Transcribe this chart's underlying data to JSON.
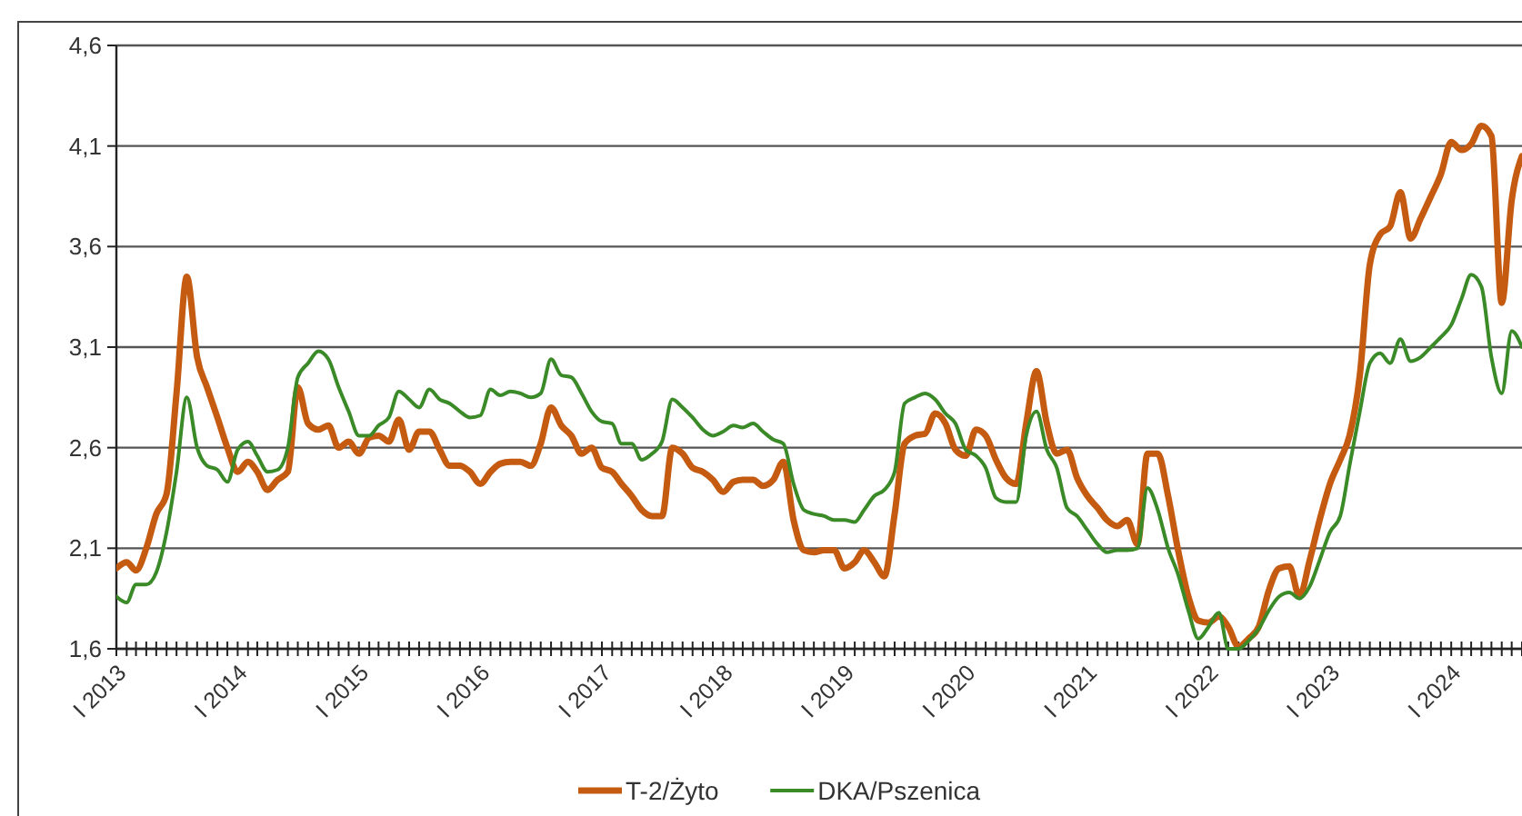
{
  "chart_data": {
    "type": "line",
    "x": [
      "2013-01",
      "2013-02",
      "2013-03",
      "2013-04",
      "2013-05",
      "2013-06",
      "2013-07",
      "2013-08",
      "2013-09",
      "2013-10",
      "2013-11",
      "2013-12",
      "2014-01",
      "2014-02",
      "2014-03",
      "2014-04",
      "2014-05",
      "2014-06",
      "2014-07",
      "2014-08",
      "2014-09",
      "2014-10",
      "2014-11",
      "2014-12",
      "2015-01",
      "2015-02",
      "2015-03",
      "2015-04",
      "2015-05",
      "2015-06",
      "2015-07",
      "2015-08",
      "2015-09",
      "2015-10",
      "2015-11",
      "2015-12",
      "2016-01",
      "2016-02",
      "2016-03",
      "2016-04",
      "2016-05",
      "2016-06",
      "2016-07",
      "2016-08",
      "2016-09",
      "2016-10",
      "2016-11",
      "2016-12",
      "2017-01",
      "2017-02",
      "2017-03",
      "2017-04",
      "2017-05",
      "2017-06",
      "2017-07",
      "2017-08",
      "2017-09",
      "2017-10",
      "2017-11",
      "2017-12",
      "2018-01",
      "2018-02",
      "2018-03",
      "2018-04",
      "2018-05",
      "2018-06",
      "2018-07",
      "2018-08",
      "2018-09",
      "2018-10",
      "2018-11",
      "2018-12",
      "2019-01",
      "2019-02",
      "2019-03",
      "2019-04",
      "2019-05",
      "2019-06",
      "2019-07",
      "2019-08",
      "2019-09",
      "2019-10",
      "2019-11",
      "2019-12",
      "2020-01",
      "2020-02",
      "2020-03",
      "2020-04",
      "2020-05",
      "2020-06",
      "2020-07",
      "2020-08",
      "2020-09",
      "2020-10",
      "2020-11",
      "2020-12",
      "2021-01",
      "2021-02",
      "2021-03",
      "2021-04",
      "2021-05",
      "2021-06",
      "2021-07",
      "2021-08",
      "2021-09",
      "2021-10",
      "2021-11",
      "2021-12",
      "2022-01",
      "2022-02",
      "2022-03",
      "2022-04",
      "2022-05",
      "2022-06",
      "2022-07",
      "2022-08",
      "2022-09",
      "2022-10",
      "2022-11",
      "2022-12",
      "2023-01",
      "2023-02",
      "2023-03",
      "2023-04",
      "2023-05",
      "2023-06",
      "2023-07",
      "2023-08",
      "2023-09",
      "2023-10",
      "2023-11",
      "2023-12",
      "2024-01",
      "2024-02",
      "2024-03",
      "2024-04",
      "2024-05",
      "2024-06",
      "2024-07",
      "2024-08"
    ],
    "series": [
      {
        "name": "T-2/Żyto",
        "color": "#c55a11",
        "values": [
          2.0,
          2.03,
          1.99,
          2.1,
          2.27,
          2.37,
          2.87,
          3.45,
          3.05,
          2.9,
          2.75,
          2.6,
          2.48,
          2.53,
          2.48,
          2.39,
          2.44,
          2.48,
          2.9,
          2.72,
          2.69,
          2.71,
          2.6,
          2.63,
          2.57,
          2.65,
          2.66,
          2.63,
          2.74,
          2.59,
          2.68,
          2.68,
          2.59,
          2.51,
          2.51,
          2.48,
          2.42,
          2.48,
          2.52,
          2.53,
          2.53,
          2.51,
          2.62,
          2.8,
          2.71,
          2.66,
          2.57,
          2.6,
          2.5,
          2.48,
          2.42,
          2.36,
          2.29,
          2.26,
          2.26,
          2.6,
          2.57,
          2.5,
          2.48,
          2.44,
          2.38,
          2.43,
          2.44,
          2.44,
          2.41,
          2.44,
          2.53,
          2.24,
          2.09,
          2.08,
          2.09,
          2.09,
          2.0,
          2.03,
          2.09,
          2.03,
          1.96,
          2.27,
          2.62,
          2.66,
          2.67,
          2.77,
          2.72,
          2.59,
          2.56,
          2.69,
          2.66,
          2.54,
          2.45,
          2.42,
          2.72,
          2.98,
          2.72,
          2.57,
          2.59,
          2.45,
          2.36,
          2.3,
          2.24,
          2.21,
          2.24,
          2.12,
          2.57,
          2.57,
          2.36,
          2.09,
          1.86,
          1.74,
          1.73,
          1.76,
          1.71,
          1.61,
          1.65,
          1.71,
          1.89,
          2.0,
          2.01,
          1.86,
          2.04,
          2.24,
          2.42,
          2.54,
          2.66,
          2.96,
          3.51,
          3.66,
          3.7,
          3.87,
          3.64,
          3.74,
          3.85,
          3.96,
          4.12,
          4.08,
          4.11,
          4.2,
          4.15,
          3.32,
          3.83,
          4.05
        ]
      },
      {
        "name": "DKA/Pszenica",
        "color": "#3a8a28",
        "values": [
          1.86,
          1.83,
          1.92,
          1.92,
          1.98,
          2.18,
          2.48,
          2.85,
          2.6,
          2.51,
          2.49,
          2.43,
          2.59,
          2.63,
          2.56,
          2.48,
          2.49,
          2.6,
          2.95,
          3.02,
          3.08,
          3.04,
          2.9,
          2.78,
          2.66,
          2.66,
          2.71,
          2.75,
          2.88,
          2.84,
          2.8,
          2.89,
          2.84,
          2.82,
          2.78,
          2.75,
          2.76,
          2.89,
          2.86,
          2.88,
          2.87,
          2.85,
          2.87,
          3.04,
          2.96,
          2.95,
          2.87,
          2.78,
          2.73,
          2.72,
          2.62,
          2.62,
          2.54,
          2.57,
          2.63,
          2.84,
          2.8,
          2.75,
          2.69,
          2.66,
          2.68,
          2.71,
          2.7,
          2.72,
          2.68,
          2.64,
          2.62,
          2.42,
          2.29,
          2.27,
          2.26,
          2.24,
          2.24,
          2.23,
          2.29,
          2.36,
          2.39,
          2.48,
          2.82,
          2.85,
          2.87,
          2.84,
          2.77,
          2.72,
          2.59,
          2.56,
          2.5,
          2.35,
          2.33,
          2.33,
          2.66,
          2.78,
          2.59,
          2.5,
          2.3,
          2.26,
          2.19,
          2.12,
          2.08,
          2.09,
          2.09,
          2.1,
          2.4,
          2.29,
          2.1,
          1.97,
          1.79,
          1.65,
          1.71,
          1.78,
          1.6,
          1.6,
          1.64,
          1.7,
          1.79,
          1.86,
          1.88,
          1.85,
          1.91,
          2.04,
          2.18,
          2.26,
          2.51,
          2.78,
          3.02,
          3.07,
          3.02,
          3.14,
          3.03,
          3.05,
          3.1,
          3.15,
          3.21,
          3.34,
          3.46,
          3.4,
          3.05,
          2.87,
          3.18,
          3.1
        ]
      }
    ],
    "xlim": [
      "2013-01",
      "2024-08"
    ],
    "xticks": [
      {
        "value": "2013-01",
        "label": "I 2013"
      },
      {
        "value": "2014-01",
        "label": "I 2014"
      },
      {
        "value": "2015-01",
        "label": "I 2015"
      },
      {
        "value": "2016-01",
        "label": "I 2016"
      },
      {
        "value": "2017-01",
        "label": "I 2017"
      },
      {
        "value": "2018-01",
        "label": "I 2018"
      },
      {
        "value": "2019-01",
        "label": "I 2019"
      },
      {
        "value": "2020-01",
        "label": "I 2020"
      },
      {
        "value": "2021-01",
        "label": "I 2021"
      },
      {
        "value": "2022-01",
        "label": "I 2022"
      },
      {
        "value": "2023-01",
        "label": "I 2023"
      },
      {
        "value": "2024-01",
        "label": "I 2024"
      }
    ],
    "ylim": [
      1.6,
      4.6
    ],
    "yticks": [
      {
        "value": 1.6,
        "label": "1,6"
      },
      {
        "value": 2.1,
        "label": "2,1"
      },
      {
        "value": 2.6,
        "label": "2,6"
      },
      {
        "value": 3.1,
        "label": "3,1"
      },
      {
        "value": 3.6,
        "label": "3,6"
      },
      {
        "value": 4.1,
        "label": "4,1"
      },
      {
        "value": 4.6,
        "label": "4,6"
      }
    ],
    "grid": "y",
    "legend": "bottom",
    "marker": "none",
    "line_style": "solid"
  }
}
